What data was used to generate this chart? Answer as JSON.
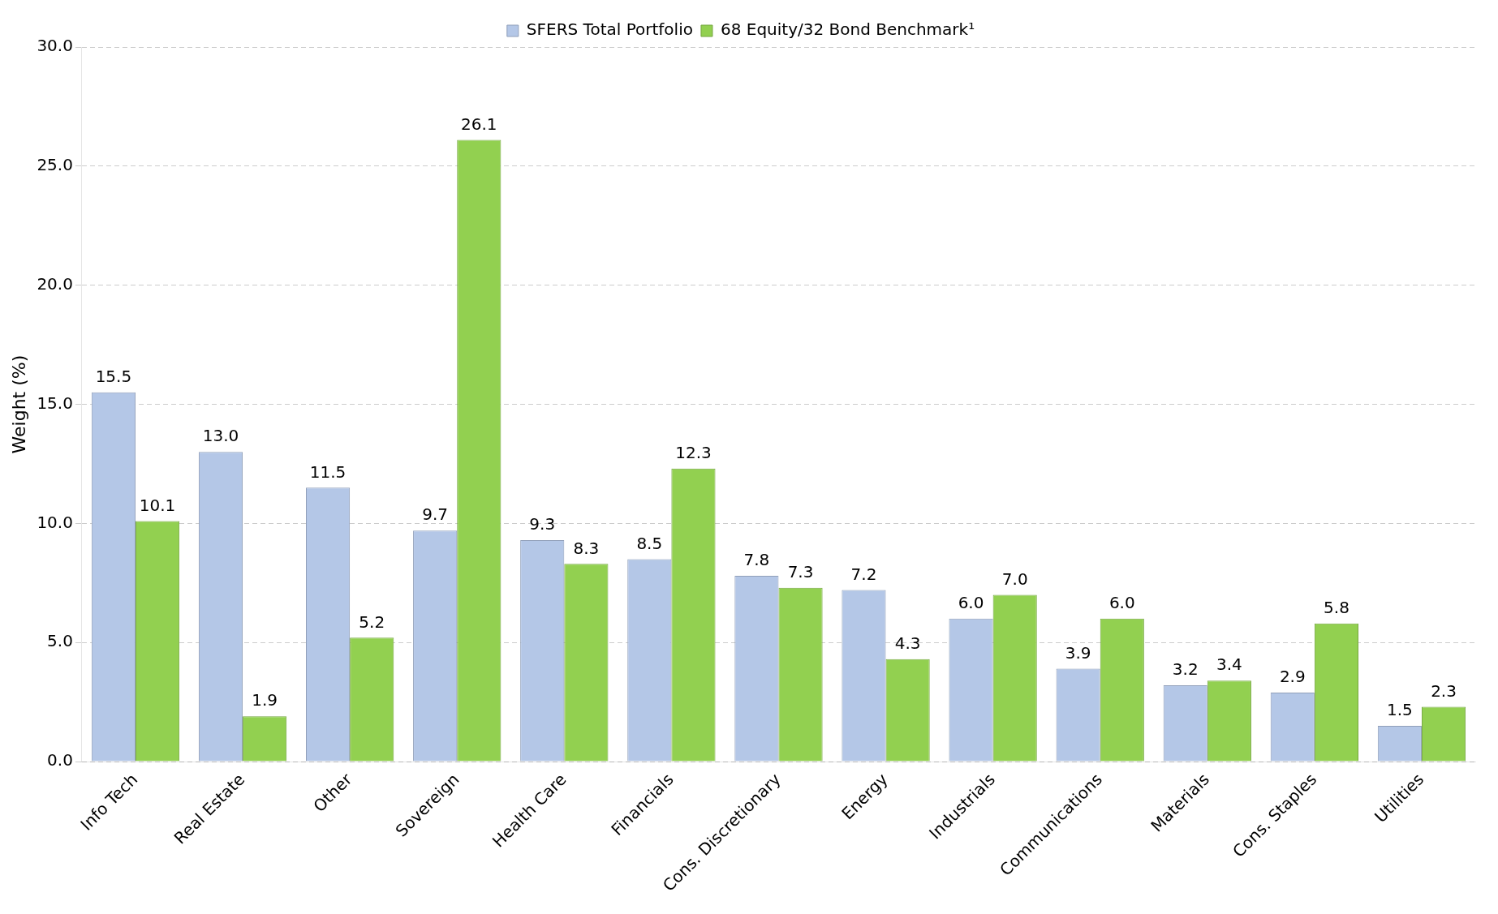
{
  "chart_data": {
    "type": "bar",
    "ylabel": "Weight (%)",
    "categories": [
      "Info Tech",
      "Real Estate",
      "Other",
      "Sovereign",
      "Health Care",
      "Financials",
      "Cons. Discretionary",
      "Energy",
      "Industrials",
      "Communications",
      "Materials",
      "Cons. Staples",
      "Utilities"
    ],
    "series": [
      {
        "name": "SFERS Total Portfolio",
        "color": "#b4c7e7",
        "values": [
          15.5,
          13.0,
          11.5,
          9.7,
          9.3,
          8.5,
          7.8,
          7.2,
          6.0,
          3.9,
          3.2,
          2.9,
          1.5
        ],
        "value_labels": [
          "15.5",
          "13.0",
          "11.5",
          "9.7",
          "9.3",
          "8.5",
          "7.8",
          "7.2",
          "6.0",
          "3.9",
          "3.2",
          "2.9",
          "1.5"
        ]
      },
      {
        "name": "68 Equity/32 Bond Benchmark¹",
        "color": "#92d050",
        "values": [
          10.1,
          1.9,
          5.2,
          26.1,
          8.3,
          12.3,
          7.3,
          4.3,
          7.0,
          6.0,
          3.4,
          5.8,
          2.3
        ],
        "value_labels": [
          "10.1",
          "1.9",
          "5.2",
          "26.1",
          "8.3",
          "12.3",
          "7.3",
          "4.3",
          "7.0",
          "6.0",
          "3.4",
          "5.8",
          "2.3"
        ]
      }
    ],
    "ylim": [
      0,
      30
    ],
    "yticks": [
      {
        "value": 0,
        "label": "0.0"
      },
      {
        "value": 5,
        "label": "5.0"
      },
      {
        "value": 10,
        "label": "10.0"
      },
      {
        "value": 15,
        "label": "15.0"
      },
      {
        "value": 20,
        "label": "20.0"
      },
      {
        "value": 25,
        "label": "25.0"
      },
      {
        "value": 30,
        "label": "30.0"
      }
    ],
    "grid": "y",
    "legend": "top"
  }
}
